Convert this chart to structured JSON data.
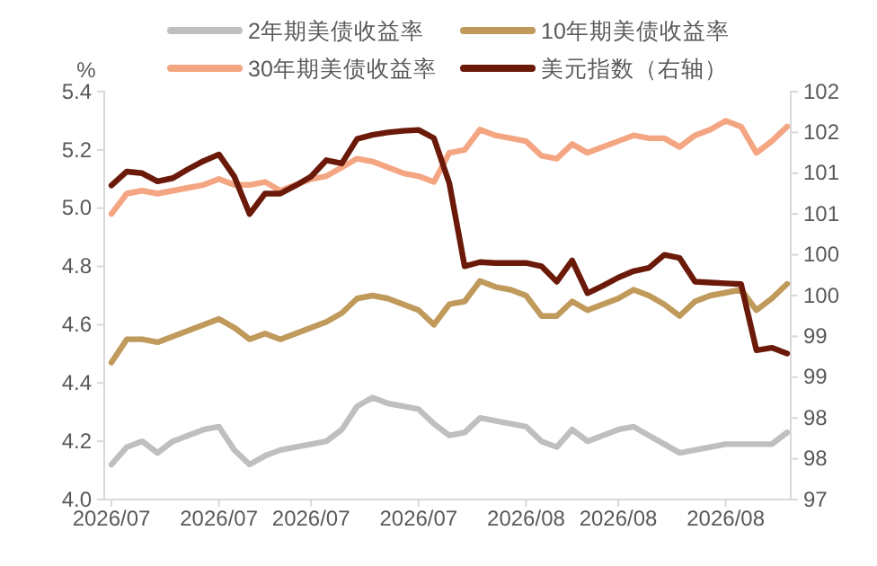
{
  "chart_data": {
    "type": "line",
    "ylabel": "%",
    "categories": [
      "2026/07",
      null,
      null,
      null,
      null,
      null,
      null,
      "2026/07",
      null,
      null,
      null,
      null,
      null,
      "2026/07",
      null,
      null,
      null,
      null,
      null,
      null,
      "2026/07",
      null,
      null,
      null,
      null,
      null,
      null,
      "2026/08",
      null,
      null,
      null,
      null,
      null,
      "2026/08",
      null,
      null,
      null,
      null,
      null,
      null,
      "2026/08",
      null,
      null,
      null,
      null
    ],
    "series": [
      {
        "name": "2年期美债收益率",
        "color": "#bfbfbf",
        "values": [
          4.12,
          4.18,
          4.2,
          4.16,
          4.2,
          4.22,
          4.24,
          4.25,
          4.17,
          4.12,
          4.15,
          4.17,
          4.18,
          4.19,
          4.2,
          4.24,
          4.32,
          4.35,
          4.33,
          4.32,
          4.31,
          4.26,
          4.22,
          4.23,
          4.28,
          4.27,
          4.26,
          4.25,
          4.2,
          4.18,
          4.24,
          4.2,
          4.22,
          4.24,
          4.25,
          4.22,
          4.19,
          4.16,
          4.17,
          4.18,
          4.19,
          4.19,
          4.19,
          4.19,
          4.23
        ]
      },
      {
        "name": "10年期美债收益率",
        "color": "#c09a5b",
        "values": [
          4.47,
          4.55,
          4.55,
          4.54,
          4.56,
          4.58,
          4.6,
          4.62,
          4.59,
          4.55,
          4.57,
          4.55,
          4.57,
          4.59,
          4.61,
          4.64,
          4.69,
          4.7,
          4.69,
          4.67,
          4.65,
          4.6,
          4.67,
          4.68,
          4.75,
          4.73,
          4.72,
          4.7,
          4.63,
          4.63,
          4.68,
          4.65,
          4.67,
          4.69,
          4.72,
          4.7,
          4.67,
          4.63,
          4.68,
          4.7,
          4.71,
          4.72,
          4.65,
          4.69,
          4.74
        ]
      },
      {
        "name": "30年期美债收益率",
        "color": "#f4a582",
        "values": [
          4.98,
          5.05,
          5.06,
          5.05,
          5.06,
          5.07,
          5.08,
          5.1,
          5.08,
          5.08,
          5.09,
          5.06,
          5.08,
          5.1,
          5.11,
          5.14,
          5.17,
          5.16,
          5.14,
          5.12,
          5.11,
          5.09,
          5.19,
          5.2,
          5.27,
          5.25,
          5.24,
          5.23,
          5.18,
          5.17,
          5.22,
          5.19,
          5.21,
          5.23,
          5.25,
          5.24,
          5.24,
          5.21,
          5.25,
          5.27,
          5.3,
          5.28,
          5.19,
          5.23,
          5.28
        ]
      },
      {
        "name": "美元指数（右轴）",
        "color": "#6b1a0a",
        "axis": "y2",
        "values": [
          100.85,
          101.02,
          101.0,
          100.9,
          100.94,
          101.05,
          101.15,
          101.23,
          100.96,
          100.5,
          100.75,
          100.75,
          100.85,
          100.96,
          101.16,
          101.12,
          101.42,
          101.47,
          101.5,
          101.52,
          101.53,
          101.43,
          100.88,
          99.86,
          99.91,
          99.9,
          99.9,
          99.9,
          99.86,
          99.67,
          99.93,
          99.53,
          99.62,
          99.72,
          99.8,
          99.84,
          100.0,
          99.96,
          99.67,
          99.66,
          99.65,
          99.64,
          98.83,
          98.86,
          98.79
        ]
      }
    ],
    "ylim": [
      4.0,
      5.4
    ],
    "yticks": [
      {
        "value": 4.0,
        "label": "4.0"
      },
      4.2,
      4.4,
      4.6,
      4.8,
      {
        "value": 5.0,
        "label": "5.0"
      },
      5.2,
      5.4
    ],
    "y2lim": [
      97,
      102
    ],
    "y2ticks": [
      97,
      {
        "value": 97.5,
        "label": "98"
      },
      98,
      {
        "value": 98.5,
        "label": "99"
      },
      99,
      {
        "value": 99.5,
        "label": "100"
      },
      100,
      {
        "value": 100.5,
        "label": "101"
      },
      101,
      {
        "value": 101.5,
        "label": "102"
      },
      102
    ],
    "legend": "top",
    "grid": false
  }
}
